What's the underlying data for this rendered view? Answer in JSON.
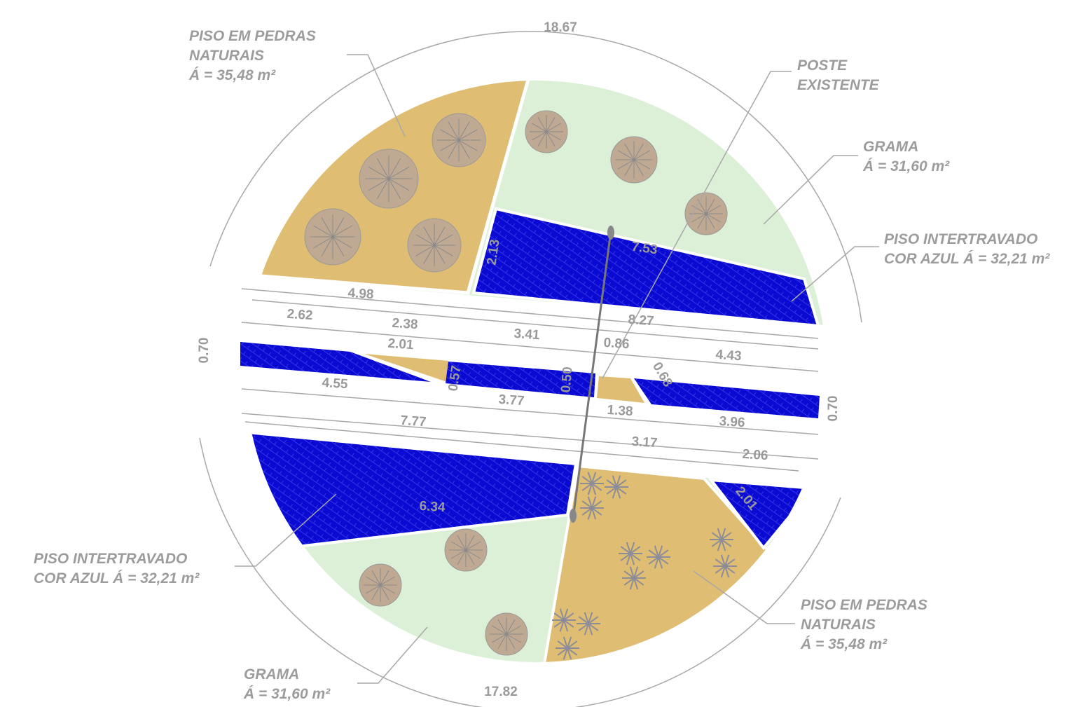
{
  "callouts": [
    {
      "lines": [
        "PISO EM PEDRAS",
        "NATURAIS",
        "Á = 35,48 m²"
      ]
    },
    {
      "lines": [
        "POSTE",
        "EXISTENTE"
      ]
    },
    {
      "lines": [
        "GRAMA",
        "Á = 31,60 m²"
      ]
    },
    {
      "lines": [
        "PISO INTERTRAVADO",
        "COR AZUL Á = 32,21 m²"
      ]
    },
    {
      "lines": [
        "PISO INTERTRAVADO",
        "COR AZUL Á = 32,21 m²"
      ]
    },
    {
      "lines": [
        "PISO EM PEDRAS",
        "NATURAIS",
        "Á = 35,48 m²"
      ]
    },
    {
      "lines": [
        "GRAMA",
        "Á = 31,60 m²"
      ]
    }
  ],
  "dimensions": [
    "18.67",
    "4.98",
    "2.62",
    "2.38",
    "3.41",
    "8.27",
    "2.01",
    "0.86",
    "4.43",
    "7.53",
    "2.13",
    "0.70",
    "0.57",
    "0.50",
    "0.68",
    "4.55",
    "3.77",
    "1.38",
    "3.96",
    "0.70",
    "7.77",
    "3.17",
    "2.06",
    "6.34",
    "2.01",
    "17.82"
  ]
}
